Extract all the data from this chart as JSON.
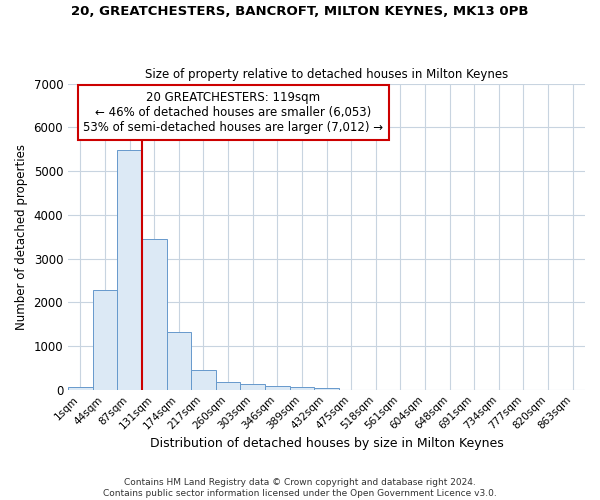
{
  "title1": "20, GREATCHESTERS, BANCROFT, MILTON KEYNES, MK13 0PB",
  "title2": "Size of property relative to detached houses in Milton Keynes",
  "xlabel": "Distribution of detached houses by size in Milton Keynes",
  "ylabel": "Number of detached properties",
  "footnote1": "Contains HM Land Registry data © Crown copyright and database right 2024.",
  "footnote2": "Contains public sector information licensed under the Open Government Licence v3.0.",
  "bar_labels": [
    "1sqm",
    "44sqm",
    "87sqm",
    "131sqm",
    "174sqm",
    "217sqm",
    "260sqm",
    "303sqm",
    "346sqm",
    "389sqm",
    "432sqm",
    "475sqm",
    "518sqm",
    "561sqm",
    "604sqm",
    "648sqm",
    "691sqm",
    "734sqm",
    "777sqm",
    "820sqm",
    "863sqm"
  ],
  "bar_values": [
    70,
    2270,
    5480,
    3440,
    1310,
    450,
    175,
    130,
    90,
    55,
    30,
    0,
    0,
    0,
    0,
    0,
    0,
    0,
    0,
    0,
    0
  ],
  "bar_color": "#dce9f5",
  "bar_edge_color": "#6699cc",
  "grid_color": "#c8d4e0",
  "property_label": "20 GREATCHESTERS: 119sqm",
  "annotation_line1": "← 46% of detached houses are smaller (6,053)",
  "annotation_line2": "53% of semi-detached houses are larger (7,012) →",
  "vline_color": "#cc0000",
  "annotation_box_facecolor": "#ffffff",
  "annotation_box_edgecolor": "#cc0000",
  "ylim": [
    0,
    7000
  ],
  "background_color": "#ffffff",
  "vline_xindex": 3
}
